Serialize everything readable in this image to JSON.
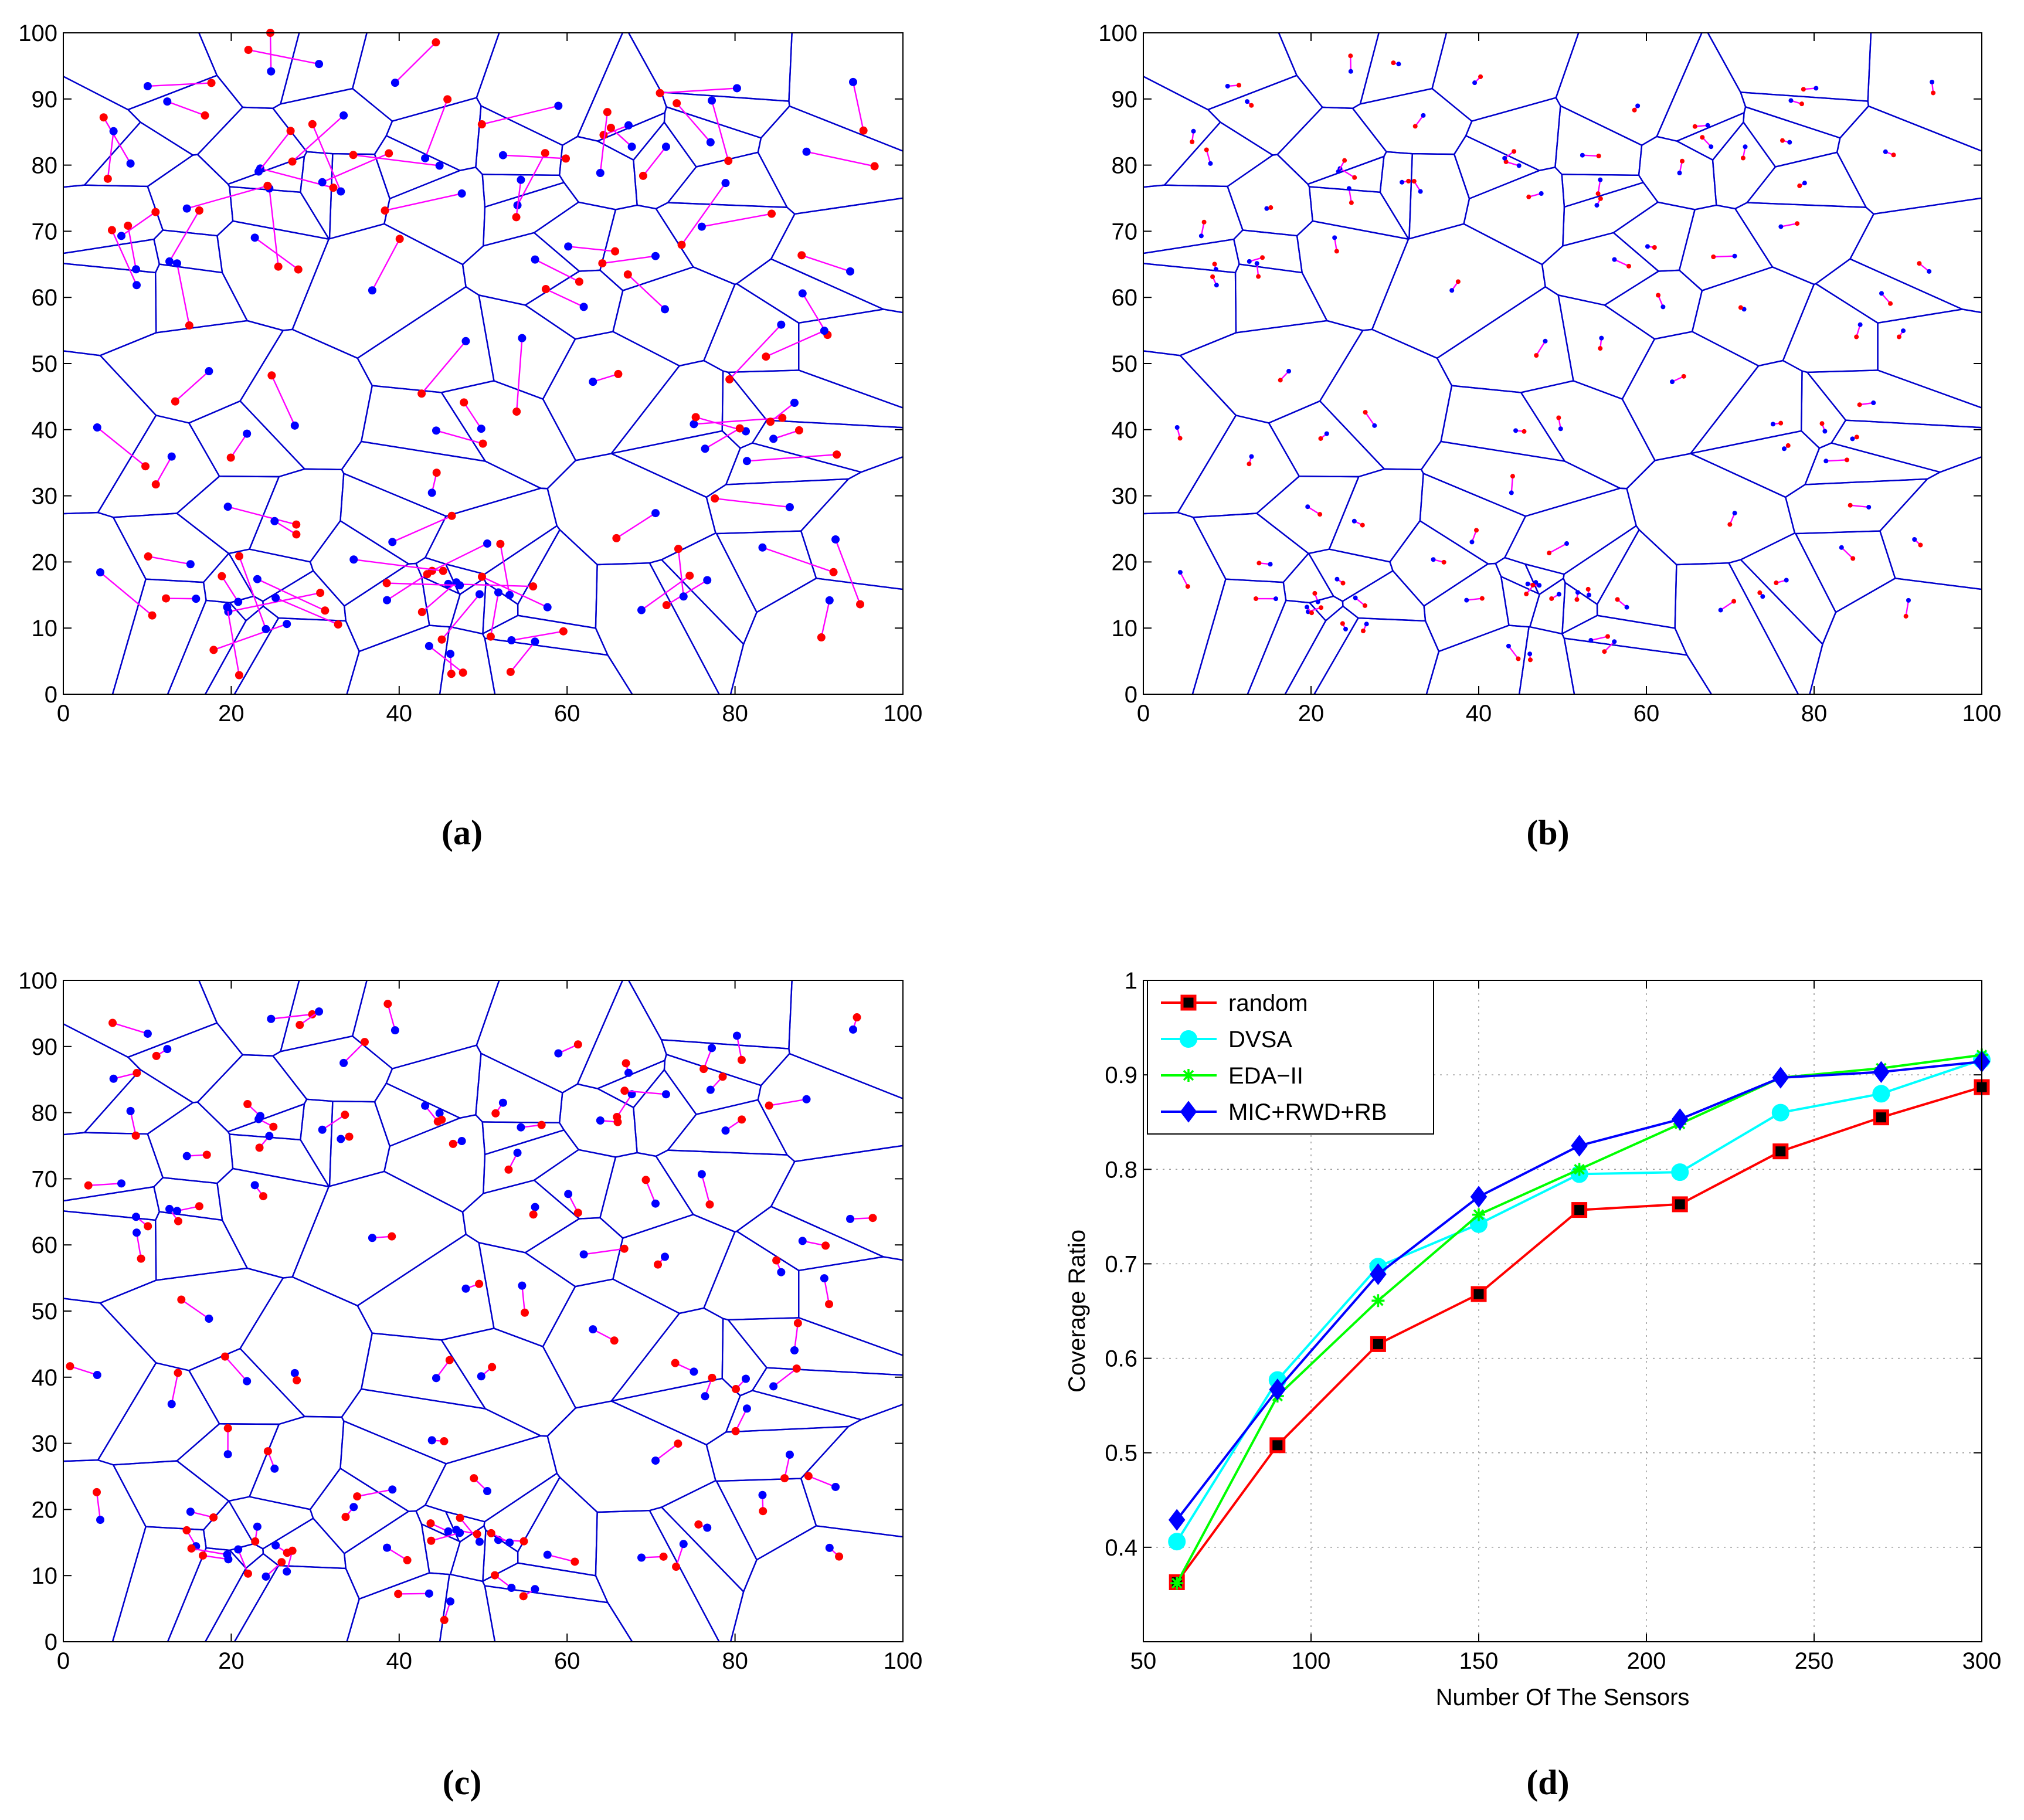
{
  "colors": {
    "blue": "#0000ff",
    "red": "#ff0000",
    "magenta": "#ff00ff",
    "cyan": "#00ffff",
    "green": "#00ff00",
    "edge": "#0000cc"
  },
  "subfigures": [
    {
      "label": "(a)",
      "kind": "voronoi",
      "variant": "a",
      "xticks": [
        "0",
        "20",
        "40",
        "60",
        "80",
        "100"
      ],
      "yticks": [
        "0",
        "10",
        "20",
        "30",
        "40",
        "50",
        "60",
        "70",
        "80",
        "90",
        "100"
      ]
    },
    {
      "label": "(b)",
      "kind": "voronoi",
      "variant": "b",
      "xticks": [
        "0",
        "20",
        "40",
        "60",
        "80",
        "100"
      ],
      "yticks": [
        "0",
        "10",
        "20",
        "30",
        "40",
        "50",
        "60",
        "70",
        "80",
        "90",
        "100"
      ]
    },
    {
      "label": "(c)",
      "kind": "voronoi",
      "variant": "c",
      "xticks": [
        "0",
        "20",
        "40",
        "60",
        "80",
        "100"
      ],
      "yticks": [
        "0",
        "10",
        "20",
        "30",
        "40",
        "50",
        "60",
        "70",
        "80",
        "90",
        "100"
      ]
    },
    {
      "label": "(d)",
      "kind": "line"
    }
  ],
  "chart_data": {
    "type": "line",
    "xlabel": "Number Of The Sensors",
    "ylabel": "Coverage Ratio",
    "xlim": [
      50,
      300
    ],
    "ylim": [
      0.3,
      1
    ],
    "xticks": [
      "50",
      "100",
      "150",
      "200",
      "250",
      "300"
    ],
    "yticks": [
      "0.4",
      "0.5",
      "0.6",
      "0.7",
      "0.8",
      "0.9",
      "1"
    ],
    "xtick_values": [
      50,
      100,
      150,
      200,
      250,
      300
    ],
    "ytick_values": [
      0.4,
      0.5,
      0.6,
      0.7,
      0.8,
      0.9,
      1.0
    ],
    "grid": true,
    "legend_position": "top-left",
    "x": [
      60,
      90,
      120,
      150,
      180,
      210,
      240,
      270,
      300
    ],
    "series": [
      {
        "name": "random",
        "color": "#ff0000",
        "marker": "square",
        "values": [
          0.363,
          0.508,
          0.615,
          0.668,
          0.757,
          0.763,
          0.819,
          0.855,
          0.887
        ]
      },
      {
        "name": "DVSA",
        "color": "#00ffff",
        "marker": "circle",
        "values": [
          0.406,
          0.577,
          0.697,
          0.742,
          0.795,
          0.797,
          0.86,
          0.88,
          0.916
        ]
      },
      {
        "name": "EDA−II",
        "color": "#00ff00",
        "marker": "star",
        "values": [
          0.362,
          0.56,
          0.661,
          0.752,
          0.8,
          0.848,
          0.897,
          0.907,
          0.921
        ]
      },
      {
        "name": "MIC+RWD+RB",
        "color": "#0000ff",
        "marker": "diamond",
        "values": [
          0.429,
          0.567,
          0.689,
          0.771,
          0.825,
          0.853,
          0.897,
          0.903,
          0.914
        ]
      }
    ]
  }
}
